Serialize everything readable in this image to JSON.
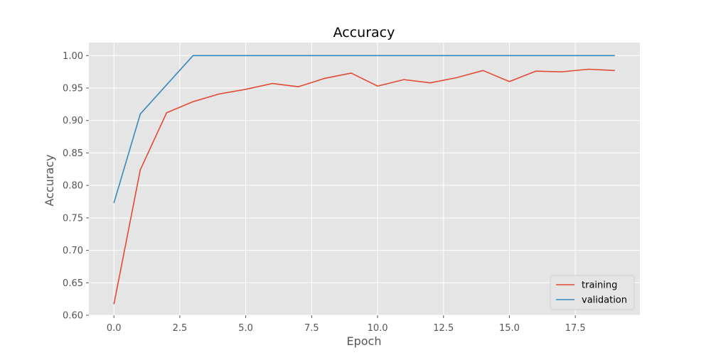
{
  "chart_data": {
    "type": "line",
    "title": "Accuracy",
    "xlabel": "Epoch",
    "ylabel": "Accuracy",
    "xlim": [
      -0.95,
      19.95
    ],
    "ylim": [
      0.6,
      1.02
    ],
    "xticks": [
      0.0,
      2.5,
      5.0,
      7.5,
      10.0,
      12.5,
      15.0,
      17.5
    ],
    "xtick_labels": [
      "0.0",
      "2.5",
      "5.0",
      "7.5",
      "10.0",
      "12.5",
      "15.0",
      "17.5"
    ],
    "yticks": [
      0.6,
      0.65,
      0.7,
      0.75,
      0.8,
      0.85,
      0.9,
      0.95,
      1.0
    ],
    "ytick_labels": [
      "0.60",
      "0.65",
      "0.70",
      "0.75",
      "0.80",
      "0.85",
      "0.90",
      "0.95",
      "1.00"
    ],
    "grid": true,
    "legend_position": "bottom-right",
    "x": [
      0,
      1,
      2,
      3,
      4,
      5,
      6,
      7,
      8,
      9,
      10,
      11,
      12,
      13,
      14,
      15,
      16,
      17,
      18,
      19
    ],
    "series": [
      {
        "name": "training",
        "color": "#E24A33",
        "values": [
          0.617,
          0.824,
          0.912,
          0.929,
          0.941,
          0.948,
          0.957,
          0.952,
          0.965,
          0.973,
          0.953,
          0.963,
          0.958,
          0.966,
          0.977,
          0.96,
          0.976,
          0.975,
          0.979,
          0.977
        ]
      },
      {
        "name": "validation",
        "color": "#348ABD",
        "values": [
          0.773,
          0.91,
          0.955,
          1.0,
          1.0,
          1.0,
          1.0,
          1.0,
          1.0,
          1.0,
          1.0,
          1.0,
          1.0,
          1.0,
          1.0,
          1.0,
          1.0,
          1.0,
          1.0,
          1.0
        ]
      }
    ]
  },
  "style": {
    "axes_background": "#E5E5E5",
    "grid_color": "#FFFFFF",
    "tick_color": "#555555",
    "legend_background": "#E5E5E5",
    "legend_border": "#CCCCCC"
  }
}
